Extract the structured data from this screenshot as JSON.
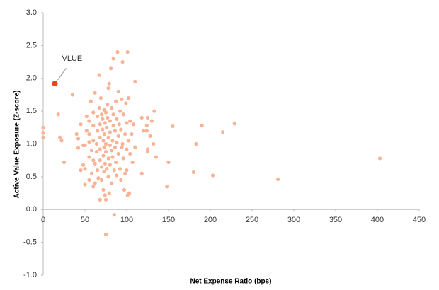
{
  "chart_data": {
    "type": "scatter",
    "xlabel": "Net Expense Ratio (bps)",
    "ylabel": "Active Value Exposure  (Z-score)",
    "xlim": [
      0,
      450
    ],
    "xticks": [
      0,
      50,
      100,
      150,
      200,
      250,
      300,
      350,
      400,
      450
    ],
    "ylim": [
      -1,
      3
    ],
    "yticks": [
      {
        "value": -1,
        "label": "-1.0"
      },
      -0.5,
      {
        "value": 0,
        "label": "0.0"
      },
      0.5,
      {
        "value": 1,
        "label": "1.0"
      },
      1.5,
      {
        "value": 2,
        "label": "2.0"
      },
      2.5,
      {
        "value": 3,
        "label": "3.0"
      }
    ],
    "color": "#f7b394",
    "x": [
      0,
      0,
      0,
      18,
      20,
      22,
      25,
      35,
      40,
      42,
      42,
      45,
      48,
      48,
      50,
      50,
      52,
      52,
      55,
      55,
      55,
      55,
      57,
      58,
      58,
      60,
      60,
      60,
      60,
      62,
      62,
      62,
      64,
      64,
      65,
      65,
      65,
      66,
      67,
      67,
      68,
      68,
      68,
      68,
      69,
      70,
      70,
      70,
      71,
      71,
      72,
      72,
      72,
      73,
      73,
      73,
      73,
      74,
      74,
      74,
      75,
      75,
      75,
      75,
      75,
      76,
      76,
      77,
      77,
      78,
      78,
      78,
      79,
      79,
      80,
      80,
      80,
      80,
      81,
      82,
      82,
      82,
      83,
      83,
      84,
      84,
      84,
      85,
      85,
      86,
      86,
      87,
      87,
      88,
      88,
      88,
      89,
      90,
      90,
      90,
      91,
      92,
      92,
      93,
      93,
      94,
      94,
      95,
      95,
      96,
      96,
      97,
      98,
      98,
      99,
      100,
      100,
      100,
      101,
      101,
      102,
      102,
      103,
      104,
      104,
      106,
      107,
      108,
      110,
      110,
      118,
      118,
      120,
      124,
      124,
      125,
      125,
      125,
      128,
      130,
      132,
      133,
      135,
      148,
      150,
      155,
      180,
      183,
      190,
      203,
      215,
      229,
      281,
      403,
      55,
      45,
      50,
      60,
      78,
      68
    ],
    "y": [
      1.25,
      1.17,
      1.1,
      1.45,
      1.1,
      1.05,
      0.72,
      1.75,
      1.15,
      1.08,
      0.94,
      1.3,
      0.98,
      0.68,
      0.62,
      0.98,
      1.2,
      1.42,
      1.35,
      1.15,
      0.8,
      0.45,
      1.65,
      0.55,
      0.9,
      1.48,
      1.28,
      1.05,
      0.75,
      1.78,
      0.7,
      0.4,
      1.0,
      0.88,
      1.2,
      1.42,
      0.6,
      0.48,
      2.05,
      1.55,
      1.3,
      1.1,
      0.92,
      0.75,
      1.7,
      0.45,
      0.65,
      1.45,
      1.38,
      1.22,
      1.05,
      0.82,
      0.3,
      1.52,
      1.15,
      0.95,
      0.58,
      1.32,
      0.7,
      0.22,
      1.48,
      1.0,
      0.88,
      0.15,
      -0.38,
      1.25,
      0.62,
      1.4,
      1.6,
      1.1,
      0.78,
      0.5,
      1.92,
      0.25,
      1.35,
      1.18,
      0.98,
      0.68,
      2.15,
      1.55,
      0.9,
      0.4,
      1.05,
      0.8,
      1.28,
      1.45,
      2.3,
      0.6,
      -0.08,
      1.2,
      0.95,
      1.65,
      0.72,
      1.38,
      1.02,
      0.52,
      2.4,
      1.12,
      0.85,
      1.8,
      1.3,
      1.5,
      0.62,
      1.22,
      0.45,
      1.68,
      0.95,
      1.0,
      2.25,
      1.45,
      0.78,
      0.3,
      1.15,
      0.55,
      1.62,
      1.32,
      0.92,
      0.6,
      2.4,
      0.22,
      1.7,
      1.05,
      0.25,
      1.35,
      0.85,
      1.15,
      0.72,
      1.3,
      1.95,
      0.95,
      1.4,
      0.55,
      1.2,
      1.28,
      1.2,
      1.4,
      0.92,
      0.88,
      1.12,
      1.35,
      1.0,
      1.5,
      0.8,
      0.35,
      0.72,
      1.27,
      0.57,
      1.0,
      1.28,
      0.52,
      1.18,
      1.31,
      0.46,
      0.78,
      1.03,
      0.6,
      0.38,
      0.35,
      1.85,
      0.15
    ],
    "highlight": {
      "label": "VLUE",
      "x": 14,
      "y": 1.92,
      "color": "#e5471b"
    }
  }
}
